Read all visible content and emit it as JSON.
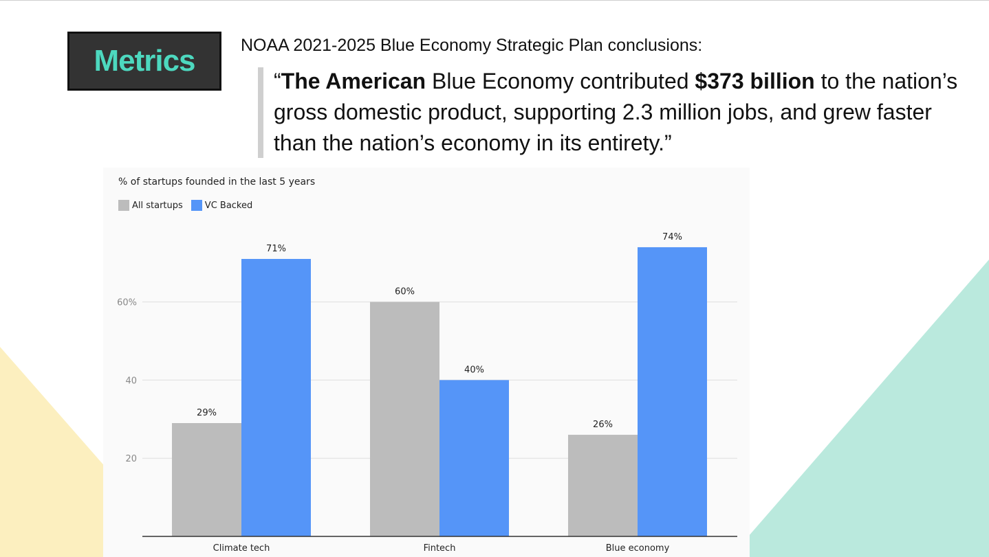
{
  "badge": {
    "label": "Metrics"
  },
  "intro": "NOAA 2021-2025 Blue Economy Strategic Plan conclusions:",
  "quote": {
    "open": "“",
    "bold1": "The American",
    "text1": " Blue Economy contributed ",
    "bold2": "$373 billion",
    "text2": " to the nation’s gross domestic product, supporting 2.3 million jobs, and grew faster than the nation’s economy in its entirety.”"
  },
  "colors": {
    "all_startups": "#bcbcbc",
    "vc_backed": "#5595f8",
    "badge_text": "#4dd8bf",
    "yellow_shape": "#fcefbf",
    "teal_shape": "#bae9dd"
  },
  "chart_data": {
    "type": "bar",
    "title": "% of startups founded in the last 5 years",
    "categories": [
      "Climate tech",
      "Fintech",
      "Blue economy"
    ],
    "series": [
      {
        "name": "All startups",
        "values": [
          29,
          60,
          26
        ],
        "labels": [
          "29%",
          "60%",
          "26%"
        ]
      },
      {
        "name": "VC Backed",
        "values": [
          71,
          40,
          74
        ],
        "labels": [
          "71%",
          "40%",
          "74%"
        ]
      }
    ],
    "yticks": [
      {
        "value": 20,
        "label": "20"
      },
      {
        "value": 40,
        "label": "40"
      },
      {
        "value": 60,
        "label": "60%"
      }
    ],
    "ylim": [
      0,
      80
    ],
    "xlabel": "",
    "ylabel": "",
    "legend": "top-left",
    "grid": true
  }
}
